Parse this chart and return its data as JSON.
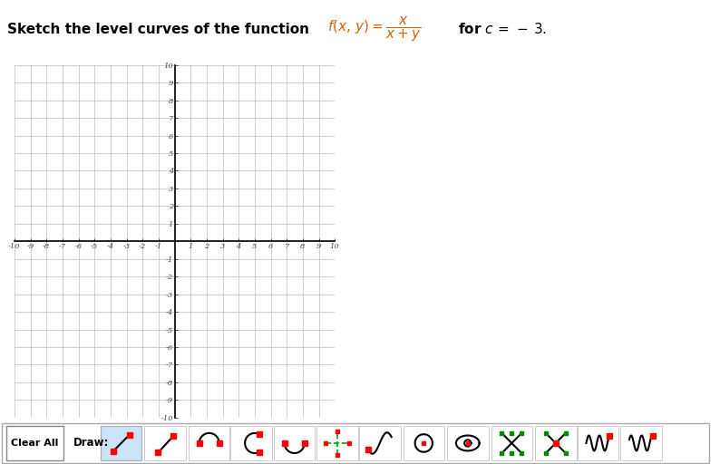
{
  "title_bold": "Sketch the level curves of the function ",
  "title_formula": "f(x, y) = \\dfrac{x}{x+y}",
  "title_for": " for ",
  "title_c": "c =",
  "title_val": " - 3.",
  "x_min": -10,
  "x_max": 10,
  "y_min": -10,
  "y_max": 10,
  "grid_color": "#bbbbbb",
  "axis_color": "#000000",
  "tick_color": "#444444",
  "bg_color": "#ffffff",
  "figsize": [
    7.94,
    5.12
  ],
  "dpi": 100
}
